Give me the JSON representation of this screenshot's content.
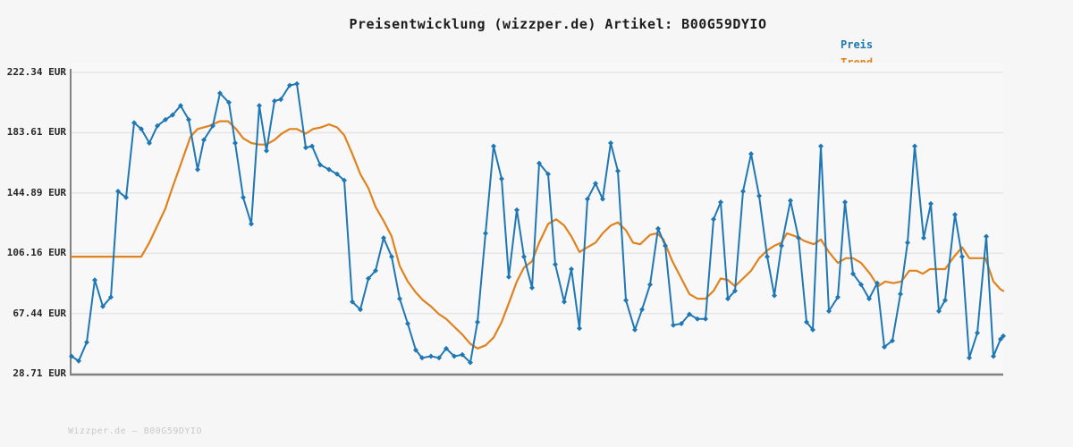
{
  "title": "Preisentwicklung (wizzper.de) Artikel: B00G59DYIO",
  "watermark": "Wizzper.de – B00G59DYIO",
  "colors": {
    "price": "#1f77b4",
    "trend": "#e0821e",
    "grid": "#e6e6e6",
    "spine": "#828282"
  },
  "legend": [
    {
      "label": "Preis",
      "color": "#1f77b4"
    },
    {
      "label": "Trend",
      "color": "#e0821e"
    }
  ],
  "y_axis": {
    "unit": "EUR",
    "ticks": [
      {
        "label": "222.34 EUR",
        "value": 222.34
      },
      {
        "label": "183.61 EUR",
        "value": 183.61
      },
      {
        "label": "144.89 EUR",
        "value": 144.89
      },
      {
        "label": "106.16 EUR",
        "value": 106.16
      },
      {
        "label": "67.44 EUR",
        "value": 67.44
      },
      {
        "label": "28.71 EUR",
        "value": 28.71
      }
    ]
  },
  "chart_data": {
    "type": "line",
    "title": "Preisentwicklung (wizzper.de) Artikel: B00G59DYIO",
    "xlabel": "",
    "ylabel": "EUR",
    "ylim": [
      28.71,
      222.34
    ],
    "xlim": [
      0,
      1042
    ],
    "grid": "horizontal",
    "legend_position": "top-right",
    "x_axis_labels": "none (timeline, unlabeled)",
    "series": [
      {
        "name": "Preis",
        "color": "#1f77b4",
        "markers": true,
        "points": [
          [
            0,
            40
          ],
          [
            8,
            37
          ],
          [
            17,
            49
          ],
          [
            26,
            89
          ],
          [
            35,
            72
          ],
          [
            44,
            78
          ],
          [
            52,
            146
          ],
          [
            61,
            142
          ],
          [
            70,
            190
          ],
          [
            78,
            186
          ],
          [
            87,
            177
          ],
          [
            96,
            188
          ],
          [
            105,
            192
          ],
          [
            113,
            195
          ],
          [
            122,
            201
          ],
          [
            131,
            192
          ],
          [
            141,
            160
          ],
          [
            148,
            179
          ],
          [
            158,
            188
          ],
          [
            166,
            209
          ],
          [
            176,
            203
          ],
          [
            183,
            177
          ],
          [
            192,
            142
          ],
          [
            201,
            125
          ],
          [
            210,
            201
          ],
          [
            218,
            172
          ],
          [
            227,
            204
          ],
          [
            234,
            205
          ],
          [
            244,
            214
          ],
          [
            252,
            215
          ],
          [
            262,
            174
          ],
          [
            269,
            175
          ],
          [
            278,
            163
          ],
          [
            288,
            160
          ],
          [
            297,
            157
          ],
          [
            305,
            153
          ],
          [
            314,
            75
          ],
          [
            323,
            70
          ],
          [
            332,
            90
          ],
          [
            340,
            95
          ],
          [
            349,
            116
          ],
          [
            358,
            104
          ],
          [
            367,
            77
          ],
          [
            376,
            61
          ],
          [
            385,
            44
          ],
          [
            392,
            39
          ],
          [
            402,
            40
          ],
          [
            411,
            39
          ],
          [
            419,
            45
          ],
          [
            428,
            40
          ],
          [
            437,
            41
          ],
          [
            446,
            36
          ],
          [
            454,
            62
          ],
          [
            463,
            119
          ],
          [
            472,
            175
          ],
          [
            481,
            154
          ],
          [
            489,
            91
          ],
          [
            498,
            134
          ],
          [
            506,
            104
          ],
          [
            515,
            84
          ],
          [
            523,
            164
          ],
          [
            533,
            157
          ],
          [
            541,
            99
          ],
          [
            551,
            75
          ],
          [
            559,
            96
          ],
          [
            568,
            58
          ],
          [
            577,
            141
          ],
          [
            586,
            151
          ],
          [
            594,
            141
          ],
          [
            603,
            177
          ],
          [
            611,
            159
          ],
          [
            620,
            76
          ],
          [
            630,
            57
          ],
          [
            638,
            70
          ],
          [
            647,
            86
          ],
          [
            656,
            122
          ],
          [
            664,
            111
          ],
          [
            673,
            60
          ],
          [
            682,
            61
          ],
          [
            691,
            67
          ],
          [
            700,
            64
          ],
          [
            709,
            64
          ],
          [
            718,
            128
          ],
          [
            726,
            139
          ],
          [
            734,
            77
          ],
          [
            742,
            82
          ],
          [
            751,
            146
          ],
          [
            760,
            170
          ],
          [
            769,
            143
          ],
          [
            778,
            104
          ],
          [
            786,
            79
          ],
          [
            794,
            111
          ],
          [
            804,
            140
          ],
          [
            813,
            116
          ],
          [
            822,
            62
          ],
          [
            829,
            57
          ],
          [
            838,
            175
          ],
          [
            847,
            69
          ],
          [
            857,
            78
          ],
          [
            865,
            139
          ],
          [
            874,
            93
          ],
          [
            883,
            86
          ],
          [
            892,
            77
          ],
          [
            901,
            87
          ],
          [
            909,
            46
          ],
          [
            918,
            50
          ],
          [
            927,
            80
          ],
          [
            935,
            113
          ],
          [
            943,
            175
          ],
          [
            953,
            116
          ],
          [
            961,
            138
          ],
          [
            970,
            69
          ],
          [
            977,
            76
          ],
          [
            988,
            131
          ],
          [
            996,
            104
          ],
          [
            1004,
            39
          ],
          [
            1013,
            55
          ],
          [
            1023,
            117
          ],
          [
            1031,
            40
          ],
          [
            1039,
            51
          ],
          [
            1042,
            53
          ]
        ]
      },
      {
        "name": "Trend",
        "color": "#e0821e",
        "markers": false,
        "points": [
          [
            0,
            104
          ],
          [
            78,
            104
          ],
          [
            87,
            113
          ],
          [
            96,
            124
          ],
          [
            105,
            135
          ],
          [
            112,
            147
          ],
          [
            122,
            163
          ],
          [
            133,
            181
          ],
          [
            141,
            186
          ],
          [
            154,
            188
          ],
          [
            166,
            191
          ],
          [
            175,
            191
          ],
          [
            184,
            186
          ],
          [
            192,
            180
          ],
          [
            201,
            177
          ],
          [
            210,
            176
          ],
          [
            218,
            176
          ],
          [
            227,
            179
          ],
          [
            235,
            183
          ],
          [
            244,
            186
          ],
          [
            252,
            186
          ],
          [
            262,
            183
          ],
          [
            270,
            186
          ],
          [
            279,
            187
          ],
          [
            288,
            189
          ],
          [
            297,
            187
          ],
          [
            305,
            182
          ],
          [
            314,
            170
          ],
          [
            323,
            157
          ],
          [
            332,
            148
          ],
          [
            340,
            136
          ],
          [
            349,
            127
          ],
          [
            358,
            117
          ],
          [
            367,
            98
          ],
          [
            376,
            88
          ],
          [
            385,
            81
          ],
          [
            393,
            76
          ],
          [
            402,
            72
          ],
          [
            411,
            67
          ],
          [
            419,
            64
          ],
          [
            428,
            59
          ],
          [
            437,
            54
          ],
          [
            446,
            48
          ],
          [
            454,
            45
          ],
          [
            463,
            47
          ],
          [
            472,
            52
          ],
          [
            481,
            62
          ],
          [
            489,
            74
          ],
          [
            498,
            88
          ],
          [
            506,
            97
          ],
          [
            515,
            101
          ],
          [
            523,
            113
          ],
          [
            533,
            125
          ],
          [
            542,
            128
          ],
          [
            551,
            124
          ],
          [
            559,
            117
          ],
          [
            568,
            107
          ],
          [
            577,
            110
          ],
          [
            586,
            113
          ],
          [
            594,
            119
          ],
          [
            603,
            124
          ],
          [
            611,
            126
          ],
          [
            620,
            121
          ],
          [
            628,
            113
          ],
          [
            636,
            112
          ],
          [
            647,
            118
          ],
          [
            655,
            119
          ],
          [
            662,
            115
          ],
          [
            672,
            101
          ],
          [
            682,
            90
          ],
          [
            691,
            80
          ],
          [
            700,
            77
          ],
          [
            709,
            77
          ],
          [
            718,
            82
          ],
          [
            726,
            90
          ],
          [
            734,
            89
          ],
          [
            742,
            85
          ],
          [
            751,
            90
          ],
          [
            760,
            95
          ],
          [
            769,
            103
          ],
          [
            778,
            108
          ],
          [
            786,
            111
          ],
          [
            794,
            113
          ],
          [
            800,
            119
          ],
          [
            810,
            117
          ],
          [
            820,
            114
          ],
          [
            830,
            112
          ],
          [
            838,
            115
          ],
          [
            847,
            107
          ],
          [
            857,
            100
          ],
          [
            866,
            103
          ],
          [
            874,
            103
          ],
          [
            883,
            100
          ],
          [
            893,
            93
          ],
          [
            902,
            85
          ],
          [
            910,
            88
          ],
          [
            919,
            87
          ],
          [
            928,
            88
          ],
          [
            937,
            95
          ],
          [
            945,
            95
          ],
          [
            952,
            93
          ],
          [
            960,
            96
          ],
          [
            969,
            96
          ],
          [
            977,
            96
          ],
          [
            987,
            104
          ],
          [
            996,
            110
          ],
          [
            1004,
            103
          ],
          [
            1013,
            103
          ],
          [
            1022,
            103
          ],
          [
            1031,
            88
          ],
          [
            1039,
            83
          ],
          [
            1042,
            82
          ]
        ]
      }
    ]
  }
}
